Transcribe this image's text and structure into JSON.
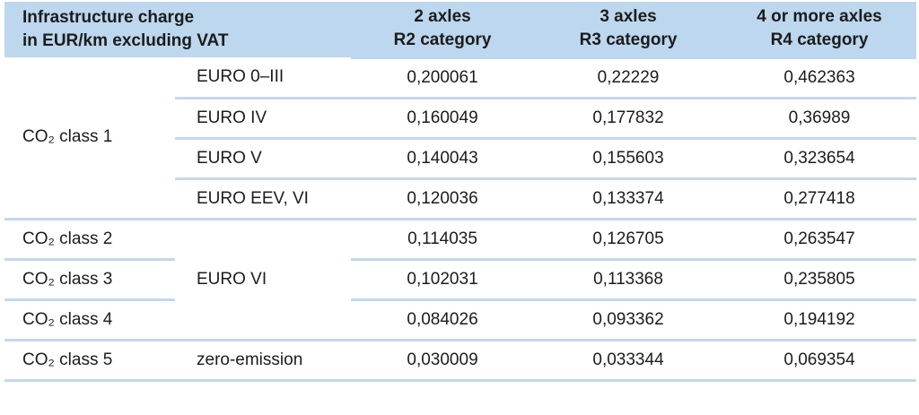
{
  "colors": {
    "header_bg": "#BDD7EE",
    "divider": "#C3D9ED",
    "text": "#1C1C1C"
  },
  "header": {
    "title_line1": "Infrastructure charge",
    "title_line2": "in EUR/km excluding VAT",
    "columns": [
      {
        "line1": "2 axles",
        "line2": "R2 category"
      },
      {
        "line1": "3 axles",
        "line2": "R3 category"
      },
      {
        "line1": "4 or more axles",
        "line2": "R4 category"
      }
    ]
  },
  "rows": [
    {
      "co2_class": "CO₂ class 1",
      "euro": "EURO 0–III",
      "values": [
        "0,200061",
        "0,22229",
        "0,462363"
      ]
    },
    {
      "euro": "EURO IV",
      "values": [
        "0,160049",
        "0,177832",
        "0,36989"
      ]
    },
    {
      "euro": "EURO V",
      "values": [
        "0,140043",
        "0,155603",
        "0,323654"
      ]
    },
    {
      "euro": "EURO EEV, VI",
      "values": [
        "0,120036",
        "0,133374",
        "0,277418"
      ]
    },
    {
      "co2_class": "CO₂ class 2",
      "euro": "EURO VI",
      "values": [
        "0,114035",
        "0,126705",
        "0,263547"
      ]
    },
    {
      "co2_class": "CO₂ class 3",
      "values": [
        "0,102031",
        "0,113368",
        "0,235805"
      ]
    },
    {
      "co2_class": "CO₂ class 4",
      "values": [
        "0,084026",
        "0,093362",
        "0,194192"
      ]
    },
    {
      "co2_class": "CO₂ class 5",
      "euro": "zero-emission",
      "values": [
        "0,030009",
        "0,033344",
        "0,069354"
      ]
    }
  ]
}
